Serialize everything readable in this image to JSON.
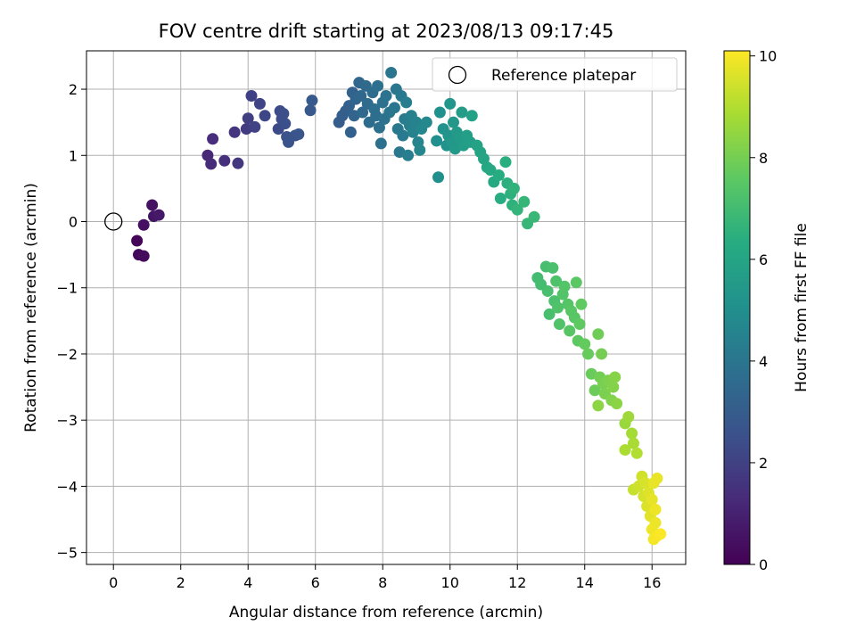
{
  "chart_data": {
    "type": "scatter",
    "title": "FOV centre drift starting at 2023/08/13 09:17:45",
    "xlabel": "Angular distance from reference (arcmin)",
    "ylabel": "Rotation from reference (arcmin)",
    "xlim": [
      -0.8,
      17.0
    ],
    "ylim": [
      -5.18,
      2.58
    ],
    "xticks": [
      0,
      2,
      4,
      6,
      8,
      10,
      12,
      14,
      16
    ],
    "yticks": [
      -5,
      -4,
      -3,
      -2,
      -1,
      0,
      1,
      2
    ],
    "grid": true,
    "colormap": "viridis",
    "colorbar": {
      "label": "Hours from first FF file",
      "range": [
        0,
        10.1
      ],
      "ticks": [
        0,
        2,
        4,
        6,
        8,
        10
      ]
    },
    "legend": {
      "position": "top-right",
      "entries": [
        "Reference platepar"
      ]
    },
    "reference_point": {
      "name": "Reference platepar",
      "x": 0,
      "y": 0
    },
    "points": [
      {
        "x": 0.7,
        "y": -0.29,
        "h": 0.1
      },
      {
        "x": 0.75,
        "y": -0.5,
        "h": 0.2
      },
      {
        "x": 0.9,
        "y": -0.52,
        "h": 0.3
      },
      {
        "x": 0.9,
        "y": -0.05,
        "h": 0.4
      },
      {
        "x": 1.15,
        "y": 0.25,
        "h": 0.5
      },
      {
        "x": 1.2,
        "y": 0.08,
        "h": 0.6
      },
      {
        "x": 1.35,
        "y": 0.1,
        "h": 0.7
      },
      {
        "x": 2.8,
        "y": 1.0,
        "h": 1.2
      },
      {
        "x": 2.9,
        "y": 0.87,
        "h": 1.3
      },
      {
        "x": 2.95,
        "y": 1.25,
        "h": 1.35
      },
      {
        "x": 3.3,
        "y": 0.92,
        "h": 1.45
      },
      {
        "x": 3.6,
        "y": 1.35,
        "h": 1.6
      },
      {
        "x": 3.7,
        "y": 0.88,
        "h": 1.7
      },
      {
        "x": 3.95,
        "y": 1.4,
        "h": 1.8
      },
      {
        "x": 4.0,
        "y": 1.56,
        "h": 1.9
      },
      {
        "x": 4.1,
        "y": 1.9,
        "h": 2.0
      },
      {
        "x": 4.2,
        "y": 1.43,
        "h": 2.05
      },
      {
        "x": 4.35,
        "y": 1.78,
        "h": 2.1
      },
      {
        "x": 4.5,
        "y": 1.6,
        "h": 2.2
      },
      {
        "x": 4.9,
        "y": 1.4,
        "h": 2.3
      },
      {
        "x": 4.95,
        "y": 1.67,
        "h": 2.35
      },
      {
        "x": 5.0,
        "y": 1.55,
        "h": 2.4
      },
      {
        "x": 5.05,
        "y": 1.63,
        "h": 2.45
      },
      {
        "x": 5.1,
        "y": 1.48,
        "h": 2.5
      },
      {
        "x": 5.15,
        "y": 1.28,
        "h": 2.55
      },
      {
        "x": 5.2,
        "y": 1.2,
        "h": 2.6
      },
      {
        "x": 5.4,
        "y": 1.3,
        "h": 2.65
      },
      {
        "x": 5.5,
        "y": 1.32,
        "h": 2.7
      },
      {
        "x": 5.85,
        "y": 1.68,
        "h": 2.8
      },
      {
        "x": 5.9,
        "y": 1.83,
        "h": 2.85
      },
      {
        "x": 6.7,
        "y": 1.5,
        "h": 3.0
      },
      {
        "x": 6.8,
        "y": 1.6,
        "h": 3.05
      },
      {
        "x": 6.9,
        "y": 1.67,
        "h": 3.1
      },
      {
        "x": 7.0,
        "y": 1.75,
        "h": 3.15
      },
      {
        "x": 7.05,
        "y": 1.35,
        "h": 3.2
      },
      {
        "x": 7.1,
        "y": 1.95,
        "h": 3.25
      },
      {
        "x": 7.15,
        "y": 1.6,
        "h": 3.3
      },
      {
        "x": 7.2,
        "y": 1.85,
        "h": 3.35
      },
      {
        "x": 7.3,
        "y": 2.1,
        "h": 3.4
      },
      {
        "x": 7.35,
        "y": 1.9,
        "h": 3.45
      },
      {
        "x": 7.4,
        "y": 1.65,
        "h": 3.5
      },
      {
        "x": 7.5,
        "y": 2.05,
        "h": 3.55
      },
      {
        "x": 7.55,
        "y": 1.78,
        "h": 3.6
      },
      {
        "x": 7.6,
        "y": 1.5,
        "h": 3.62
      },
      {
        "x": 7.7,
        "y": 1.95,
        "h": 3.65
      },
      {
        "x": 7.75,
        "y": 1.7,
        "h": 3.7
      },
      {
        "x": 7.8,
        "y": 1.6,
        "h": 3.72
      },
      {
        "x": 7.85,
        "y": 2.05,
        "h": 3.75
      },
      {
        "x": 7.9,
        "y": 1.42,
        "h": 3.78
      },
      {
        "x": 7.95,
        "y": 1.18,
        "h": 3.8
      },
      {
        "x": 8.0,
        "y": 1.8,
        "h": 3.85
      },
      {
        "x": 8.05,
        "y": 1.55,
        "h": 3.88
      },
      {
        "x": 8.1,
        "y": 1.9,
        "h": 3.9
      },
      {
        "x": 8.2,
        "y": 1.65,
        "h": 3.95
      },
      {
        "x": 8.25,
        "y": 2.25,
        "h": 4.0
      },
      {
        "x": 8.35,
        "y": 1.72,
        "h": 4.02
      },
      {
        "x": 8.4,
        "y": 2.0,
        "h": 4.05
      },
      {
        "x": 8.45,
        "y": 1.4,
        "h": 4.1
      },
      {
        "x": 8.5,
        "y": 1.05,
        "h": 4.12
      },
      {
        "x": 8.55,
        "y": 1.9,
        "h": 4.15
      },
      {
        "x": 8.6,
        "y": 1.3,
        "h": 4.2
      },
      {
        "x": 8.65,
        "y": 1.55,
        "h": 4.25
      },
      {
        "x": 8.7,
        "y": 1.8,
        "h": 4.3
      },
      {
        "x": 8.75,
        "y": 1.0,
        "h": 4.35
      },
      {
        "x": 8.8,
        "y": 1.45,
        "h": 4.4
      },
      {
        "x": 8.85,
        "y": 1.6,
        "h": 4.45
      },
      {
        "x": 8.9,
        "y": 1.35,
        "h": 4.5
      },
      {
        "x": 9.0,
        "y": 1.5,
        "h": 4.55
      },
      {
        "x": 9.05,
        "y": 1.2,
        "h": 4.6
      },
      {
        "x": 9.1,
        "y": 1.08,
        "h": 4.65
      },
      {
        "x": 9.15,
        "y": 1.4,
        "h": 4.7
      },
      {
        "x": 9.3,
        "y": 1.5,
        "h": 4.75
      },
      {
        "x": 9.6,
        "y": 1.22,
        "h": 5.0
      },
      {
        "x": 9.65,
        "y": 0.67,
        "h": 5.05
      },
      {
        "x": 9.7,
        "y": 1.65,
        "h": 5.1
      },
      {
        "x": 9.8,
        "y": 1.4,
        "h": 5.15
      },
      {
        "x": 9.9,
        "y": 1.15,
        "h": 5.2
      },
      {
        "x": 9.95,
        "y": 1.3,
        "h": 5.25
      },
      {
        "x": 10.0,
        "y": 1.78,
        "h": 5.3
      },
      {
        "x": 10.05,
        "y": 1.2,
        "h": 5.35
      },
      {
        "x": 10.1,
        "y": 1.5,
        "h": 5.4
      },
      {
        "x": 10.15,
        "y": 1.1,
        "h": 5.45
      },
      {
        "x": 10.2,
        "y": 1.35,
        "h": 5.5
      },
      {
        "x": 10.3,
        "y": 1.25,
        "h": 5.55
      },
      {
        "x": 10.35,
        "y": 1.65,
        "h": 5.6
      },
      {
        "x": 10.4,
        "y": 1.15,
        "h": 5.65
      },
      {
        "x": 10.5,
        "y": 1.3,
        "h": 5.7
      },
      {
        "x": 10.6,
        "y": 1.2,
        "h": 5.75
      },
      {
        "x": 10.65,
        "y": 1.6,
        "h": 5.8
      },
      {
        "x": 10.8,
        "y": 1.15,
        "h": 5.85
      },
      {
        "x": 10.9,
        "y": 1.05,
        "h": 5.95
      },
      {
        "x": 11.0,
        "y": 0.95,
        "h": 6.0
      },
      {
        "x": 11.1,
        "y": 0.82,
        "h": 6.1
      },
      {
        "x": 11.2,
        "y": 0.78,
        "h": 6.15
      },
      {
        "x": 11.3,
        "y": 0.6,
        "h": 6.2
      },
      {
        "x": 11.45,
        "y": 0.7,
        "h": 6.3
      },
      {
        "x": 11.5,
        "y": 0.35,
        "h": 6.35
      },
      {
        "x": 11.65,
        "y": 0.9,
        "h": 6.4
      },
      {
        "x": 11.7,
        "y": 0.58,
        "h": 6.45
      },
      {
        "x": 11.8,
        "y": 0.42,
        "h": 6.5
      },
      {
        "x": 11.85,
        "y": 0.25,
        "h": 6.55
      },
      {
        "x": 11.9,
        "y": 0.5,
        "h": 6.6
      },
      {
        "x": 12.0,
        "y": 0.18,
        "h": 6.65
      },
      {
        "x": 12.2,
        "y": 0.3,
        "h": 6.7
      },
      {
        "x": 12.3,
        "y": -0.03,
        "h": 6.75
      },
      {
        "x": 12.5,
        "y": 0.07,
        "h": 6.8
      },
      {
        "x": 12.6,
        "y": -0.85,
        "h": 7.0
      },
      {
        "x": 12.7,
        "y": -0.95,
        "h": 7.05
      },
      {
        "x": 12.85,
        "y": -0.68,
        "h": 7.1
      },
      {
        "x": 12.9,
        "y": -1.05,
        "h": 7.12
      },
      {
        "x": 12.95,
        "y": -1.4,
        "h": 7.15
      },
      {
        "x": 13.05,
        "y": -0.7,
        "h": 7.18
      },
      {
        "x": 13.1,
        "y": -1.2,
        "h": 7.2
      },
      {
        "x": 13.15,
        "y": -0.9,
        "h": 7.25
      },
      {
        "x": 13.2,
        "y": -1.3,
        "h": 7.3
      },
      {
        "x": 13.25,
        "y": -1.55,
        "h": 7.32
      },
      {
        "x": 13.35,
        "y": -1.1,
        "h": 7.35
      },
      {
        "x": 13.4,
        "y": -0.98,
        "h": 7.38
      },
      {
        "x": 13.5,
        "y": -1.25,
        "h": 7.4
      },
      {
        "x": 13.55,
        "y": -1.65,
        "h": 7.45
      },
      {
        "x": 13.6,
        "y": -1.35,
        "h": 7.48
      },
      {
        "x": 13.7,
        "y": -1.45,
        "h": 7.5
      },
      {
        "x": 13.75,
        "y": -0.92,
        "h": 7.55
      },
      {
        "x": 13.8,
        "y": -1.8,
        "h": 7.6
      },
      {
        "x": 13.85,
        "y": -1.55,
        "h": 7.62
      },
      {
        "x": 13.9,
        "y": -1.25,
        "h": 7.65
      },
      {
        "x": 14.0,
        "y": -1.85,
        "h": 7.7
      },
      {
        "x": 14.1,
        "y": -2.0,
        "h": 7.75
      },
      {
        "x": 14.2,
        "y": -2.3,
        "h": 7.8
      },
      {
        "x": 14.3,
        "y": -2.55,
        "h": 7.85
      },
      {
        "x": 14.4,
        "y": -1.7,
        "h": 7.9
      },
      {
        "x": 14.45,
        "y": -2.35,
        "h": 7.95
      },
      {
        "x": 14.5,
        "y": -2.0,
        "h": 8.0
      },
      {
        "x": 14.55,
        "y": -2.45,
        "h": 8.05
      },
      {
        "x": 14.6,
        "y": -2.6,
        "h": 8.1
      },
      {
        "x": 14.7,
        "y": -2.4,
        "h": 8.15
      },
      {
        "x": 14.8,
        "y": -2.7,
        "h": 8.2
      },
      {
        "x": 14.85,
        "y": -2.5,
        "h": 8.25
      },
      {
        "x": 14.9,
        "y": -2.35,
        "h": 8.3
      },
      {
        "x": 14.95,
        "y": -2.75,
        "h": 8.35
      },
      {
        "x": 14.4,
        "y": -2.78,
        "h": 8.4
      },
      {
        "x": 15.2,
        "y": -3.05,
        "h": 8.6
      },
      {
        "x": 15.3,
        "y": -2.95,
        "h": 8.7
      },
      {
        "x": 15.4,
        "y": -3.2,
        "h": 8.8
      },
      {
        "x": 15.45,
        "y": -3.35,
        "h": 8.85
      },
      {
        "x": 15.2,
        "y": -3.45,
        "h": 8.9
      },
      {
        "x": 15.55,
        "y": -3.5,
        "h": 9.0
      },
      {
        "x": 15.45,
        "y": -4.05,
        "h": 9.3
      },
      {
        "x": 15.6,
        "y": -4.0,
        "h": 9.4
      },
      {
        "x": 15.7,
        "y": -3.85,
        "h": 9.45
      },
      {
        "x": 15.75,
        "y": -4.15,
        "h": 9.5
      },
      {
        "x": 15.8,
        "y": -3.95,
        "h": 9.55
      },
      {
        "x": 15.85,
        "y": -4.3,
        "h": 9.6
      },
      {
        "x": 15.9,
        "y": -4.1,
        "h": 9.65
      },
      {
        "x": 15.95,
        "y": -4.45,
        "h": 9.7
      },
      {
        "x": 16.0,
        "y": -4.2,
        "h": 9.75
      },
      {
        "x": 16.05,
        "y": -3.95,
        "h": 9.8
      },
      {
        "x": 16.1,
        "y": -4.55,
        "h": 9.85
      },
      {
        "x": 16.0,
        "y": -4.65,
        "h": 9.9
      },
      {
        "x": 16.05,
        "y": -4.8,
        "h": 9.95
      },
      {
        "x": 16.15,
        "y": -4.75,
        "h": 10.0
      },
      {
        "x": 16.25,
        "y": -4.72,
        "h": 10.05
      },
      {
        "x": 16.1,
        "y": -4.35,
        "h": 9.9
      },
      {
        "x": 16.15,
        "y": -3.88,
        "h": 9.8
      }
    ]
  }
}
